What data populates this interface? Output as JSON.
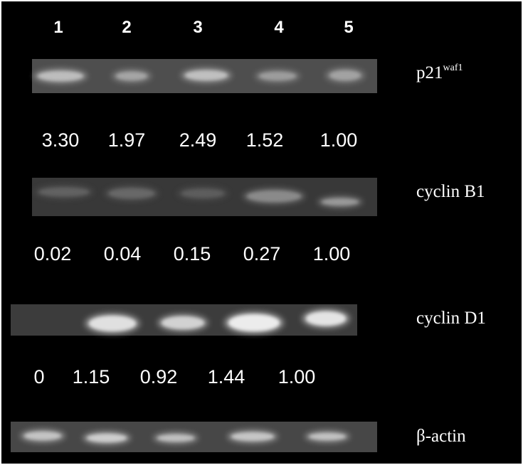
{
  "lanes": [
    "1",
    "2",
    "3",
    "4",
    "5"
  ],
  "blots": [
    {
      "label": "p21",
      "label_sup": "waf1",
      "values": [
        "3.30",
        "1.97",
        "2.49",
        "1.52",
        "1.00"
      ]
    },
    {
      "label": "cyclin B1",
      "values": [
        "0.02",
        "0.04",
        "0.15",
        "0.27",
        "1.00"
      ]
    },
    {
      "label": "cyclin D1",
      "values": [
        "0",
        "1.15",
        "0.92",
        "1.44",
        "1.00"
      ]
    },
    {
      "label": "β-actin"
    }
  ]
}
